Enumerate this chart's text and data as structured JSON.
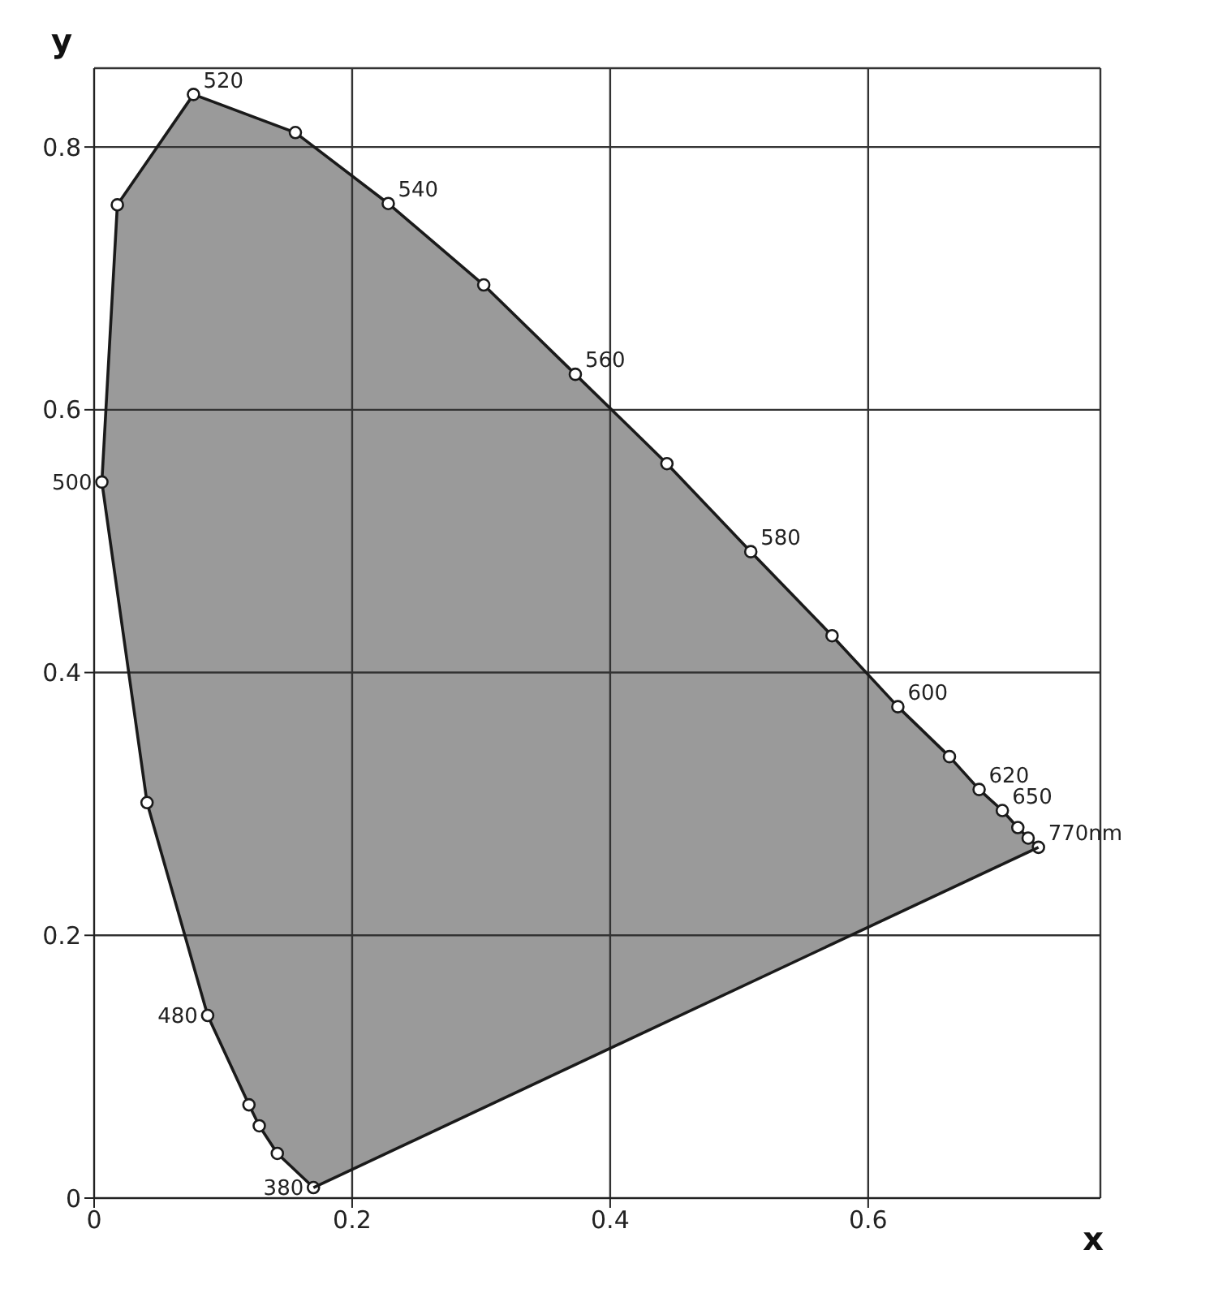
{
  "chart_data": {
    "type": "line",
    "xlabel": "x",
    "ylabel": "y",
    "xlim": [
      0,
      0.78
    ],
    "ylim": [
      0,
      0.86
    ],
    "xticks": [
      0,
      0.2,
      0.4,
      0.6
    ],
    "yticks": [
      0,
      0.2,
      0.4,
      0.6,
      0.8
    ],
    "grid": true,
    "marker": "circle",
    "line_style": "solid",
    "series": [
      {
        "color": "#1a1a1a",
        "x": [
          0.17,
          0.142,
          0.128,
          0.12,
          0.088,
          0.041,
          0.006,
          0.018,
          0.077,
          0.156,
          0.228,
          0.302,
          0.373,
          0.444,
          0.509,
          0.572,
          0.623,
          0.663,
          0.686,
          0.704,
          0.716,
          0.724,
          0.732
        ],
        "values": [
          0.008,
          0.034,
          0.055,
          0.071,
          0.139,
          0.301,
          0.545,
          0.756,
          0.84,
          0.811,
          0.757,
          0.695,
          0.627,
          0.559,
          0.492,
          0.428,
          0.374,
          0.336,
          0.311,
          0.295,
          0.282,
          0.274,
          0.267
        ]
      },
      {
        "color": "#1a1a1a",
        "marker": "none",
        "x": [
          0.732,
          0.17
        ],
        "values": [
          0.267,
          0.008
        ]
      }
    ],
    "annotations": [
      {
        "text": "380",
        "x": 0.17,
        "y": 0.008
      },
      {
        "text": "480",
        "x": 0.088,
        "y": 0.139
      },
      {
        "text": "500",
        "x": 0.006,
        "y": 0.545
      },
      {
        "text": "520",
        "x": 0.077,
        "y": 0.84
      },
      {
        "text": "540",
        "x": 0.228,
        "y": 0.757
      },
      {
        "text": "560",
        "x": 0.373,
        "y": 0.627
      },
      {
        "text": "580",
        "x": 0.509,
        "y": 0.492
      },
      {
        "text": "600",
        "x": 0.623,
        "y": 0.374
      },
      {
        "text": "620",
        "x": 0.686,
        "y": 0.311
      },
      {
        "text": "650",
        "x": 0.704,
        "y": 0.295
      },
      {
        "text": "770nm",
        "x": 0.732,
        "y": 0.267
      }
    ]
  }
}
